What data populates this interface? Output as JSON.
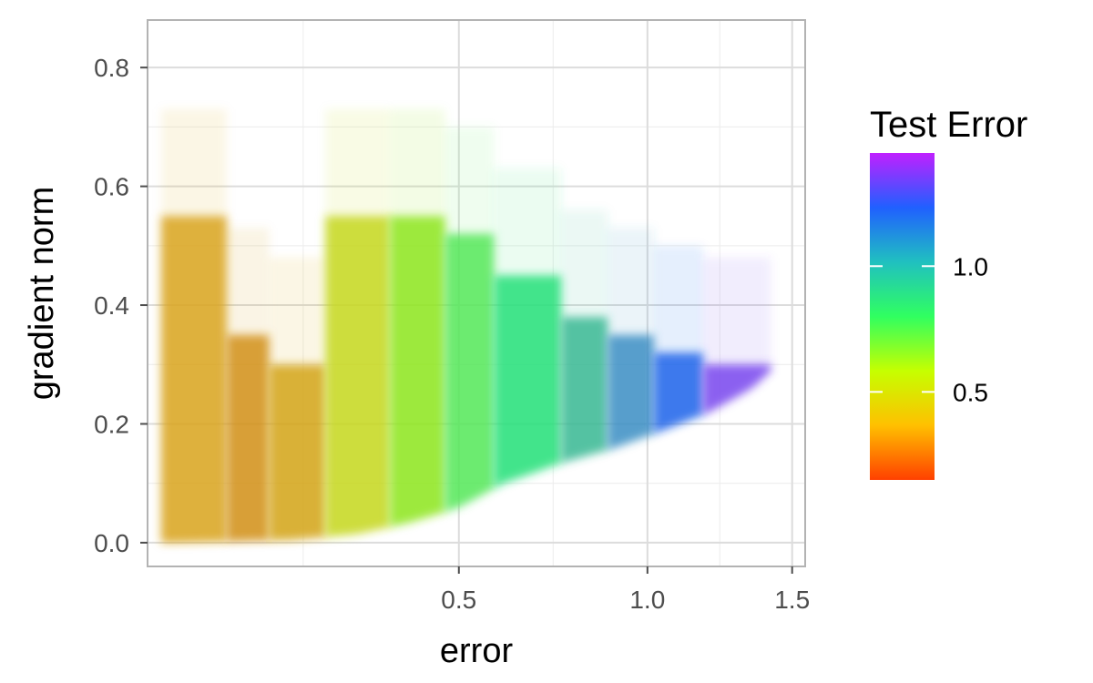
{
  "chart_data": {
    "type": "scatter",
    "title": "",
    "xlabel": "error",
    "ylabel": "gradient norm",
    "x_scale": "sqrt",
    "xlim": [
      0.05,
      1.55
    ],
    "ylim": [
      -0.04,
      0.88
    ],
    "x_ticks": [
      0.5,
      1.0,
      1.5
    ],
    "x_tick_labels": [
      "0.5",
      "1.0",
      "1.5"
    ],
    "y_ticks": [
      0.0,
      0.2,
      0.4,
      0.6,
      0.8
    ],
    "y_tick_labels": [
      "0.0",
      "0.2",
      "0.4",
      "0.6",
      "0.8"
    ],
    "grid": true,
    "point_alpha": "low (heavy overplotting)",
    "color_by": "Test Error",
    "bands": [
      {
        "x_min": 0.06,
        "x_max": 0.12,
        "y_max": 0.55,
        "color": "#d9a51e"
      },
      {
        "x_min": 0.12,
        "x_max": 0.17,
        "y_max": 0.35,
        "color": "#d2901b"
      },
      {
        "x_min": 0.17,
        "x_max": 0.25,
        "y_max": 0.3,
        "color": "#d4a518"
      },
      {
        "x_min": 0.25,
        "x_max": 0.36,
        "y_max": 0.55,
        "color": "#c6d720"
      },
      {
        "x_min": 0.36,
        "x_max": 0.47,
        "y_max": 0.55,
        "color": "#8ee61f"
      },
      {
        "x_min": 0.47,
        "x_max": 0.58,
        "y_max": 0.52,
        "color": "#55e85a"
      },
      {
        "x_min": 0.58,
        "x_max": 0.75,
        "y_max": 0.45,
        "color": "#23e07a"
      },
      {
        "x_min": 0.75,
        "x_max": 0.88,
        "y_max": 0.38,
        "color": "#39b894"
      },
      {
        "x_min": 0.88,
        "x_max": 1.02,
        "y_max": 0.35,
        "color": "#3d8fc4"
      },
      {
        "x_min": 1.02,
        "x_max": 1.18,
        "y_max": 0.32,
        "color": "#2164ea"
      },
      {
        "x_min": 1.18,
        "x_max": 1.42,
        "y_max": 0.3,
        "color": "#7a49ee"
      }
    ],
    "lower_boundary": [
      [
        0.06,
        0.0
      ],
      [
        0.2,
        0.005
      ],
      [
        0.3,
        0.015
      ],
      [
        0.4,
        0.035
      ],
      [
        0.5,
        0.06
      ],
      [
        0.6,
        0.1
      ],
      [
        0.75,
        0.135
      ],
      [
        0.9,
        0.16
      ],
      [
        1.05,
        0.19
      ],
      [
        1.2,
        0.22
      ],
      [
        1.35,
        0.26
      ],
      [
        1.42,
        0.29
      ]
    ],
    "colorbar": {
      "title": "Test Error",
      "range": [
        0.15,
        1.45
      ],
      "ticks": [
        0.5,
        1.0
      ],
      "tick_labels": [
        "0.5",
        "1.0"
      ],
      "colors": [
        "#ff4000",
        "#ffc000",
        "#c6ff00",
        "#30ff60",
        "#20c0c0",
        "#2060ff",
        "#c020ff"
      ]
    }
  }
}
